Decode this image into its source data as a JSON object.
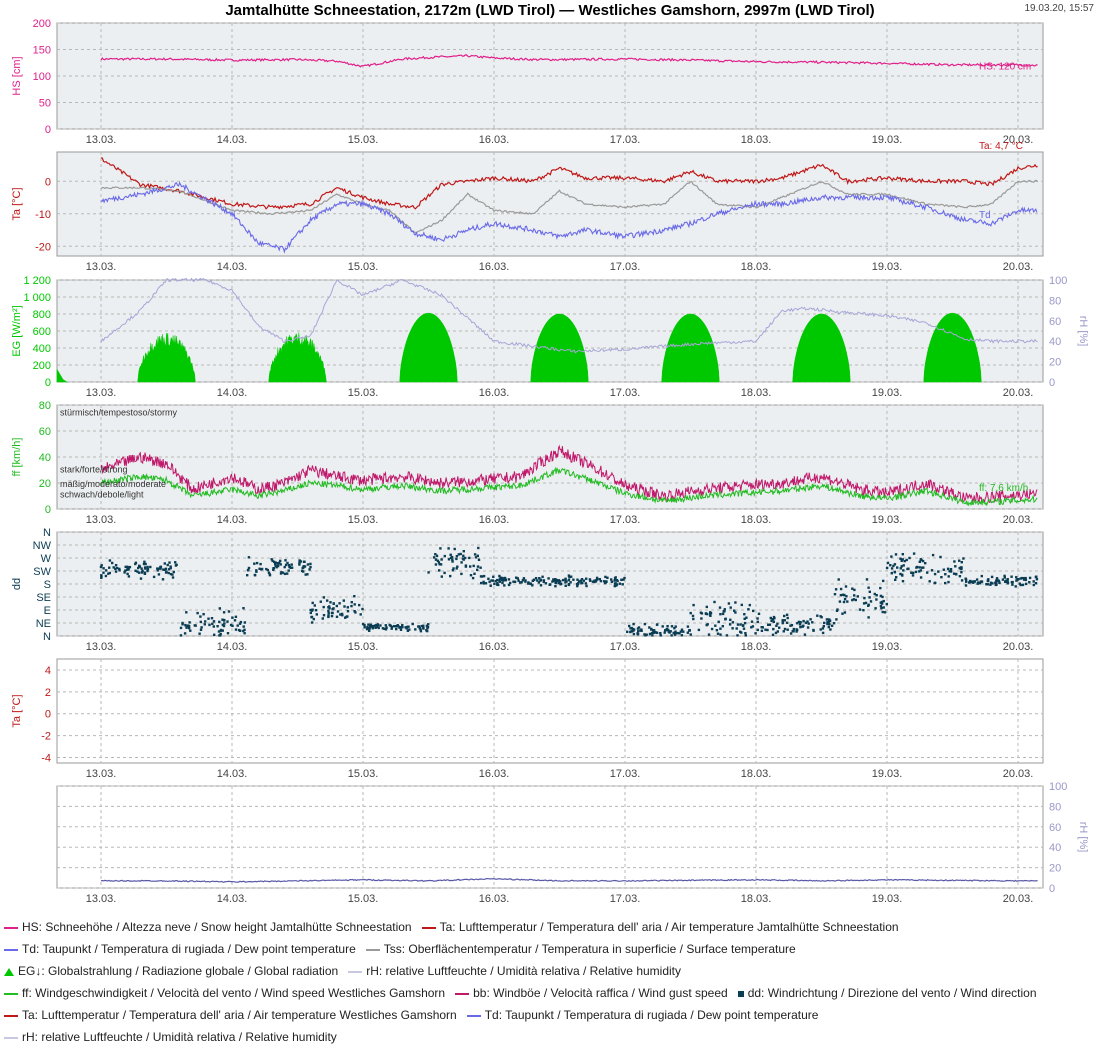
{
  "title": "Jamtalhütte Schneestation, 2172m (LWD Tirol) — Westliches Gamshorn, 2997m (LWD Tirol)",
  "timestamp": "19.03.20, 15:57",
  "colors": {
    "hs": "#e0208a",
    "ta": "#c01818",
    "td": "#6a6ae8",
    "tss": "#9a9a9a",
    "eg": "#00c800",
    "rh": "#a6a6d8",
    "ff": "#22bb22",
    "bb": "#c0186a",
    "dd": "#0b3d54",
    "ta2": "#c01818",
    "rh2": "#5858a8",
    "panel_bg": "#eceff1",
    "grid": "#b8b8b8"
  },
  "chart_data": {
    "type": "line",
    "x_ticks": [
      "13.03.",
      "14.03.",
      "15.03.",
      "16.03.",
      "17.03.",
      "18.03.",
      "19.03.",
      "20.03."
    ],
    "x_range": [
      "12.03. 15:00",
      "20.03. 05:00"
    ],
    "panels": [
      {
        "ylabel": "HS [cm]",
        "ylim": [
          0,
          200
        ],
        "yticks": [
          "0",
          "50",
          "100",
          "150",
          "200"
        ],
        "end_label": "HS: 120 cm",
        "series": [
          {
            "name": "HS",
            "type": "line",
            "x": [
              0,
              0.5,
              1,
              1.5,
              1.8,
              2,
              2.3,
              2.5,
              2.8,
              3,
              3.3,
              3.5,
              4,
              4.5,
              5,
              5.5,
              6,
              6.5,
              7,
              7.15
            ],
            "y": [
              132,
              132,
              130,
              131,
              128,
              118,
              132,
              135,
              138,
              134,
              131,
              131,
              132,
              130,
              127,
              126,
              124,
              121,
              121,
              120
            ]
          }
        ]
      },
      {
        "ylabel": "Ta [°C]",
        "ylim": [
          -23,
          9
        ],
        "yticks": [
          "-20",
          "-10",
          "0"
        ],
        "end_label": "Ta: 4,7 °C",
        "end_label2": "Td",
        "series": [
          {
            "name": "Ta",
            "type": "line",
            "x": [
              0,
              0.3,
              0.6,
              1,
              1.3,
              1.6,
              1.8,
              2,
              2.2,
              2.4,
              2.6,
              2.8,
              3,
              3.3,
              3.5,
              3.7,
              4,
              4.3,
              4.5,
              4.7,
              5,
              5.2,
              5.5,
              5.7,
              6,
              6.3,
              6.6,
              6.8,
              7,
              7.15
            ],
            "y": [
              7,
              -1,
              -3,
              -7,
              -8,
              -7,
              -2,
              -5,
              -7,
              -8,
              -1,
              0,
              1,
              0,
              4,
              1,
              1,
              0,
              3,
              0,
              0,
              1,
              5,
              0,
              1,
              0,
              0,
              -1,
              4,
              5
            ]
          },
          {
            "name": "Tss",
            "type": "line",
            "x": [
              0,
              0.3,
              0.6,
              1,
              1.3,
              1.6,
              1.8,
              2,
              2.2,
              2.4,
              2.6,
              2.8,
              3,
              3.3,
              3.5,
              3.7,
              4,
              4.3,
              4.5,
              4.7,
              5,
              5.2,
              5.5,
              5.7,
              6,
              6.3,
              6.6,
              6.8,
              7,
              7.15
            ],
            "y": [
              -2,
              -2,
              -3,
              -9,
              -10,
              -9,
              -4,
              -7,
              -9,
              -16,
              -12,
              -4,
              -9,
              -10,
              -3,
              -7,
              -8,
              -7,
              0,
              -7,
              -8,
              -5,
              0,
              -4,
              -4,
              -7,
              -8,
              -7,
              0,
              0
            ]
          },
          {
            "name": "Td",
            "type": "line",
            "x": [
              0,
              0.3,
              0.6,
              1,
              1.2,
              1.4,
              1.6,
              1.8,
              2,
              2.2,
              2.4,
              2.6,
              2.8,
              3,
              3.3,
              3.5,
              3.7,
              4,
              4.3,
              4.5,
              4.7,
              5,
              5.2,
              5.5,
              5.7,
              6,
              6.3,
              6.6,
              6.8,
              7,
              7.15
            ],
            "y": [
              -6,
              -4,
              -1,
              -10,
              -19,
              -21,
              -12,
              -7,
              -7,
              -10,
              -16,
              -18,
              -15,
              -13,
              -15,
              -17,
              -15,
              -17,
              -15,
              -13,
              -10,
              -7,
              -7,
              -5,
              -5,
              -5,
              -8,
              -12,
              -13,
              -9,
              -9
            ]
          }
        ]
      },
      {
        "ylabel": "EG [W/m²]",
        "ylim": [
          0,
          1200
        ],
        "yticks": [
          "0",
          "200",
          "400",
          "600",
          "800",
          "1 000",
          "1 200"
        ],
        "ylabel_right": "rH [%]",
        "ylim_right": [
          0,
          100
        ],
        "yticks_right": [
          "0",
          "20",
          "40",
          "60",
          "80",
          "100"
        ],
        "series": [
          {
            "name": "EG",
            "type": "area",
            "days": [
              0,
              1,
              2,
              3,
              4,
              5,
              6,
              7
            ],
            "peaks": [
              150,
              560,
              570,
              810,
              800,
              800,
              800,
              810
            ]
          },
          {
            "name": "rH",
            "type": "line",
            "x": [
              0,
              0.3,
              0.5,
              0.8,
              1,
              1.2,
              1.4,
              1.6,
              1.8,
              2,
              2.3,
              2.6,
              3,
              3.3,
              3.6,
              4,
              4.3,
              4.6,
              5,
              5.2,
              5.4,
              5.7,
              6,
              6.3,
              6.6,
              6.8,
              7,
              7.15
            ],
            "y": [
              40,
              70,
              100,
              100,
              90,
              55,
              40,
              45,
              100,
              85,
              100,
              85,
              40,
              35,
              30,
              32,
              35,
              38,
              40,
              70,
              72,
              68,
              65,
              58,
              42,
              40,
              40,
              40
            ]
          }
        ]
      },
      {
        "ylabel": "ff [km/h]",
        "ylim": [
          0,
          80
        ],
        "yticks": [
          "0",
          "20",
          "40",
          "60",
          "80"
        ],
        "threshold_labels": [
          "stürmisch/tempestoso/stormy",
          "stark/forte/strong",
          "mäßig/moderato/moderate",
          "schwach/debole/light"
        ],
        "threshold_values": [
          75,
          31,
          20,
          12
        ],
        "end_label": "ff: 7,6 km/h",
        "series": [
          {
            "name": "bb",
            "type": "line",
            "x": [
              0,
              0.3,
              0.5,
              0.7,
              1,
              1.2,
              1.4,
              1.6,
              1.8,
              2,
              2.3,
              2.6,
              2.9,
              3.2,
              3.5,
              3.8,
              4,
              4.3,
              4.6,
              4.9,
              5.2,
              5.5,
              5.8,
              6,
              6.3,
              6.6,
              6.9,
              7.15
            ],
            "y": [
              30,
              40,
              35,
              15,
              25,
              15,
              20,
              30,
              25,
              22,
              25,
              20,
              22,
              25,
              45,
              30,
              18,
              10,
              15,
              18,
              20,
              25,
              15,
              12,
              20,
              8,
              10,
              12
            ]
          },
          {
            "name": "ff",
            "type": "line",
            "x": [
              0,
              0.3,
              0.5,
              0.7,
              1,
              1.2,
              1.4,
              1.6,
              1.8,
              2,
              2.3,
              2.6,
              2.9,
              3.2,
              3.5,
              3.8,
              4,
              4.3,
              4.6,
              4.9,
              5.2,
              5.5,
              5.8,
              6,
              6.3,
              6.6,
              6.9,
              7.15
            ],
            "y": [
              20,
              25,
              22,
              10,
              15,
              10,
              14,
              20,
              18,
              15,
              18,
              14,
              16,
              18,
              30,
              20,
              12,
              6,
              10,
              12,
              14,
              18,
              10,
              8,
              14,
              5,
              6,
              7.6
            ]
          }
        ]
      },
      {
        "ylabel": "dd",
        "ylim": [
          0,
          360
        ],
        "yticks": [
          "N",
          "NE",
          "E",
          "SE",
          "S",
          "SW",
          "W",
          "NW",
          "N"
        ],
        "series": [
          {
            "name": "dd",
            "type": "scatter",
            "segments": [
              {
                "x0": 0,
                "x1": 0.6,
                "center": 230,
                "spread": 40
              },
              {
                "x0": 0.6,
                "x1": 1.1,
                "center": 45,
                "spread": 60
              },
              {
                "x0": 1.1,
                "x1": 1.6,
                "center": 240,
                "spread": 35
              },
              {
                "x0": 1.6,
                "x1": 2.0,
                "center": 90,
                "spread": 60
              },
              {
                "x0": 2.0,
                "x1": 2.5,
                "center": 30,
                "spread": 15
              },
              {
                "x0": 2.5,
                "x1": 2.9,
                "center": 250,
                "spread": 60
              },
              {
                "x0": 2.9,
                "x1": 4.0,
                "center": 190,
                "spread": 20
              },
              {
                "x0": 4.0,
                "x1": 4.5,
                "center": 20,
                "spread": 25
              },
              {
                "x0": 4.5,
                "x1": 5.0,
                "center": 60,
                "spread": 80
              },
              {
                "x0": 5.0,
                "x1": 5.6,
                "center": 40,
                "spread": 40
              },
              {
                "x0": 5.6,
                "x1": 6.0,
                "center": 120,
                "spread": 80
              },
              {
                "x0": 6.0,
                "x1": 6.6,
                "center": 230,
                "spread": 60
              },
              {
                "x0": 6.6,
                "x1": 7.15,
                "center": 190,
                "spread": 20
              }
            ]
          }
        ]
      },
      {
        "ylabel": "Ta [°C]",
        "ylim": [
          -4.5,
          5
        ],
        "yticks": [
          "-4",
          "-2",
          "0",
          "2",
          "4"
        ],
        "series": []
      },
      {
        "ylabel_right": "rH [%]",
        "ylim_right": [
          0,
          100
        ],
        "yticks_right": [
          "0",
          "20",
          "40",
          "60",
          "80",
          "100"
        ],
        "series": [
          {
            "name": "rH",
            "type": "line",
            "x": [
              0,
              0.5,
              1,
              2,
              2.5,
              3,
              3.5,
              4,
              5,
              5.5,
              6,
              7,
              7.15
            ],
            "y": [
              7,
              7,
              6,
              8,
              7,
              9,
              7,
              7,
              8,
              7,
              8,
              7,
              7
            ]
          }
        ]
      }
    ]
  },
  "legend": {
    "rows": [
      [
        {
          "label": "HS: Schneehöhe / Altezza neve / Snow height  Jamtalhütte Schneestation",
          "color": "#e0208a",
          "shape": "line"
        },
        {
          "label": "Ta: Lufttemperatur / Temperatura dell' aria / Air temperature  Jamtalhütte Schneestation",
          "color": "#c01818",
          "shape": "line"
        }
      ],
      [
        {
          "label": "Td: Taupunkt / Temperatura di rugiada / Dew point temperature",
          "color": "#6a6ae8",
          "shape": "line"
        },
        {
          "label": "Tss: Oberflächentemperatur / Temperatura in superficie / Surface temperature",
          "color": "#9a9a9a",
          "shape": "line"
        }
      ],
      [
        {
          "label": "EG↓: Globalstrahlung / Radiazione globale / Global radiation",
          "color": "#00c800",
          "shape": "area"
        },
        {
          "label": "rH: relative Luftfeuchte / Umidità relativa / Relative humidity",
          "color": "#c8c8e0",
          "shape": "line"
        }
      ],
      [
        {
          "label": "ff: Windgeschwindigkeit / Velocità del vento / Wind speed  Westliches Gamshorn",
          "color": "#22bb22",
          "shape": "line"
        },
        {
          "label": "bb: Windböe / Velocità raffica / Wind gust speed",
          "color": "#c0186a",
          "shape": "line"
        },
        {
          "label": "dd: Windrichtung / Direzione del vento / Wind direction",
          "color": "#0b3d54",
          "shape": "square"
        }
      ],
      [
        {
          "label": "Ta: Lufttemperatur / Temperatura dell' aria / Air temperature  Westliches Gamshorn",
          "color": "#c01818",
          "shape": "line"
        },
        {
          "label": "Td: Taupunkt / Temperatura di rugiada / Dew point temperature",
          "color": "#6a6ae8",
          "shape": "line"
        }
      ],
      [
        {
          "label": "rH: relative Luftfeuchte / Umidità relativa / Relative humidity",
          "color": "#c8c8e0",
          "shape": "line"
        }
      ]
    ]
  }
}
